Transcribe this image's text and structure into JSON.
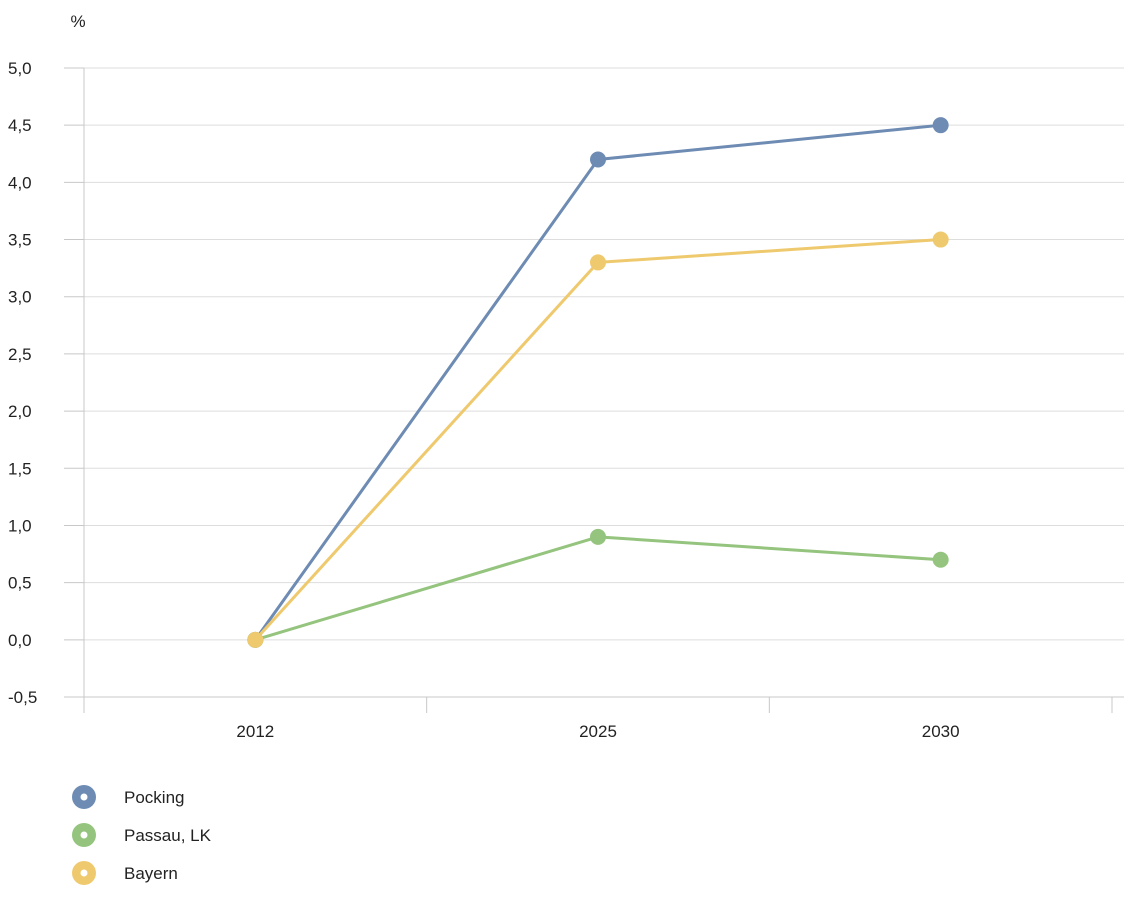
{
  "chart_data": {
    "type": "line",
    "title": "",
    "xlabel": "",
    "ylabel": "%",
    "categories": [
      "2012",
      "2025",
      "2030"
    ],
    "ylim": [
      -0.5,
      5.0
    ],
    "yticks": [
      -0.5,
      0.0,
      0.5,
      1.0,
      1.5,
      2.0,
      2.5,
      3.0,
      3.5,
      4.0,
      4.5,
      5.0
    ],
    "ytick_labels": [
      "-0,5",
      "0,0",
      "0,5",
      "1,0",
      "1,5",
      "2,0",
      "2,5",
      "3,0",
      "3,5",
      "4,0",
      "4,5",
      "5,0"
    ],
    "grid": true,
    "legend_position": "bottom-left",
    "series": [
      {
        "name": "Pocking",
        "color": "#6d8bb3",
        "values": [
          0.0,
          4.2,
          4.5
        ]
      },
      {
        "name": "Passau, LK",
        "color": "#94c47d",
        "values": [
          0.0,
          0.9,
          0.7
        ]
      },
      {
        "name": "Bayern",
        "color": "#efc96d",
        "values": [
          0.0,
          3.3,
          3.5
        ]
      }
    ]
  }
}
